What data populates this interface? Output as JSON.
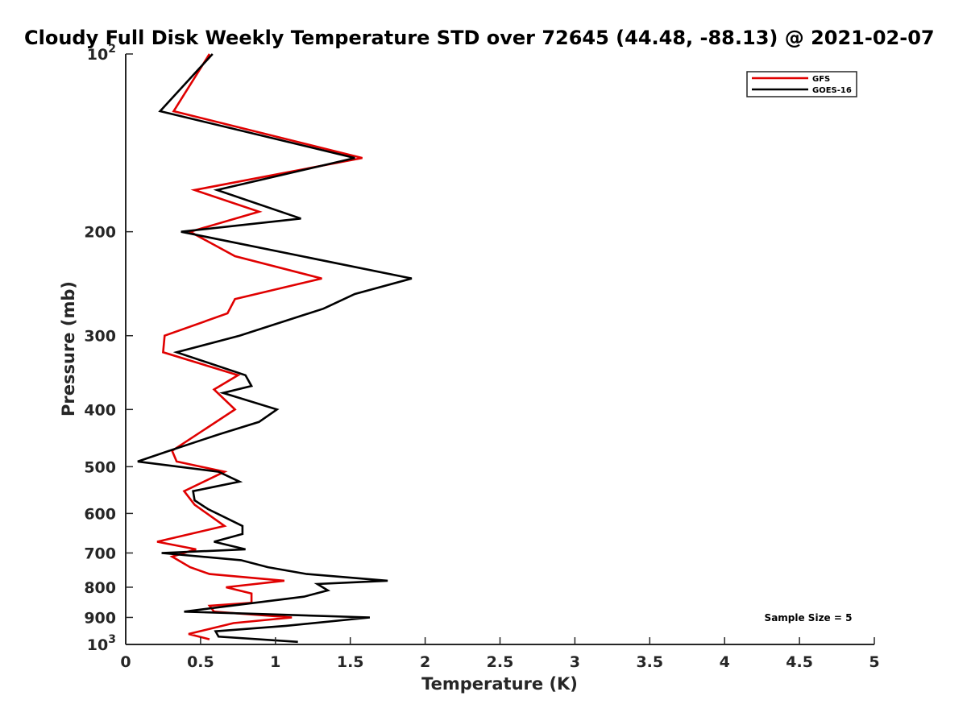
{
  "chart_data": {
    "type": "line",
    "title": "Cloudy Full Disk Weekly Temperature STD over 72645 (44.48, -88.13) @ 2021-02-07",
    "xlabel": "Temperature (K)",
    "ylabel": "Pressure (mb)",
    "xlim": [
      0,
      5
    ],
    "ylim": [
      100,
      1000
    ],
    "y_scale": "log",
    "y_reversed": true,
    "grid": false,
    "legend_position": "top-right",
    "x_ticks": [
      "0",
      "0.5",
      "1",
      "1.5",
      "2",
      "2.5",
      "3",
      "3.5",
      "4",
      "4.5",
      "5"
    ],
    "y_ticks": [
      {
        "value": 100,
        "label": "10",
        "sup": "2"
      },
      {
        "value": 200,
        "label": "200",
        "sup": ""
      },
      {
        "value": 300,
        "label": "300",
        "sup": ""
      },
      {
        "value": 400,
        "label": "400",
        "sup": ""
      },
      {
        "value": 500,
        "label": "500",
        "sup": ""
      },
      {
        "value": 600,
        "label": "600",
        "sup": ""
      },
      {
        "value": 700,
        "label": "700",
        "sup": ""
      },
      {
        "value": 800,
        "label": "800",
        "sup": ""
      },
      {
        "value": 900,
        "label": "900",
        "sup": ""
      },
      {
        "value": 1000,
        "label": "10",
        "sup": "3"
      }
    ],
    "series": [
      {
        "name": "GFS",
        "color": "#e00000",
        "points": [
          [
            0.56,
            100
          ],
          [
            0.32,
            125
          ],
          [
            1.58,
            150
          ],
          [
            0.46,
            170
          ],
          [
            0.89,
            185
          ],
          [
            0.43,
            200
          ],
          [
            0.73,
            220
          ],
          [
            1.31,
            240
          ],
          [
            0.73,
            260
          ],
          [
            0.68,
            275
          ],
          [
            0.26,
            300
          ],
          [
            0.25,
            320
          ],
          [
            0.75,
            350
          ],
          [
            0.59,
            370
          ],
          [
            0.73,
            400
          ],
          [
            0.31,
            470
          ],
          [
            0.34,
            490
          ],
          [
            0.66,
            510
          ],
          [
            0.39,
            550
          ],
          [
            0.46,
            580
          ],
          [
            0.66,
            630
          ],
          [
            0.21,
            670
          ],
          [
            0.47,
            690
          ],
          [
            0.31,
            710
          ],
          [
            0.43,
            740
          ],
          [
            0.56,
            760
          ],
          [
            1.06,
            780
          ],
          [
            0.67,
            800
          ],
          [
            0.84,
            820
          ],
          [
            0.84,
            850
          ],
          [
            0.56,
            860
          ],
          [
            0.59,
            880
          ],
          [
            1.11,
            900
          ],
          [
            0.72,
            920
          ],
          [
            0.42,
            960
          ],
          [
            0.56,
            980
          ]
        ]
      },
      {
        "name": "GOES-16",
        "color": "#000000",
        "points": [
          [
            0.58,
            100
          ],
          [
            0.23,
            125
          ],
          [
            1.53,
            150
          ],
          [
            0.61,
            170
          ],
          [
            1.17,
            190
          ],
          [
            0.37,
            200
          ],
          [
            1.91,
            240
          ],
          [
            1.53,
            255
          ],
          [
            1.32,
            270
          ],
          [
            0.76,
            300
          ],
          [
            0.34,
            320
          ],
          [
            0.8,
            350
          ],
          [
            0.84,
            365
          ],
          [
            0.65,
            375
          ],
          [
            1.01,
            400
          ],
          [
            0.89,
            420
          ],
          [
            0.63,
            440
          ],
          [
            0.29,
            470
          ],
          [
            0.08,
            490
          ],
          [
            0.62,
            510
          ],
          [
            0.76,
            530
          ],
          [
            0.45,
            550
          ],
          [
            0.46,
            570
          ],
          [
            0.55,
            590
          ],
          [
            0.78,
            630
          ],
          [
            0.78,
            650
          ],
          [
            0.59,
            670
          ],
          [
            0.8,
            690
          ],
          [
            0.24,
            700
          ],
          [
            0.77,
            720
          ],
          [
            0.95,
            740
          ],
          [
            1.21,
            760
          ],
          [
            1.75,
            780
          ],
          [
            1.28,
            790
          ],
          [
            1.35,
            810
          ],
          [
            1.19,
            830
          ],
          [
            0.39,
            880
          ],
          [
            1.63,
            900
          ],
          [
            1.07,
            930
          ],
          [
            0.6,
            950
          ],
          [
            0.62,
            970
          ],
          [
            1.15,
            990
          ]
        ]
      }
    ],
    "annotations": [
      "Sample Size = 5"
    ]
  }
}
